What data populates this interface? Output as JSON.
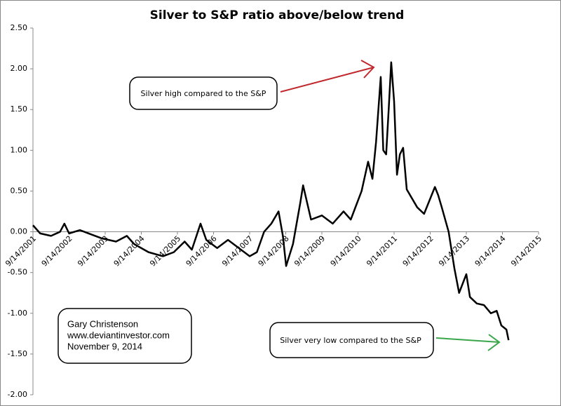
{
  "chart_data": {
    "type": "line",
    "title": "Silver to S&P ratio above/below trend",
    "x": [
      2001.7,
      2001.9,
      2002.2,
      2002.45,
      2002.57,
      2002.7,
      2003.0,
      2003.3,
      2003.6,
      2004.0,
      2004.3,
      2004.5,
      2004.9,
      2005.3,
      2005.6,
      2005.9,
      2006.1,
      2006.34,
      2006.5,
      2006.8,
      2007.1,
      2007.4,
      2007.7,
      2007.9,
      2008.1,
      2008.3,
      2008.5,
      2008.62,
      2008.71,
      2008.9,
      2009.1,
      2009.18,
      2009.4,
      2009.7,
      2010.0,
      2010.3,
      2010.5,
      2010.8,
      2010.98,
      2011.1,
      2011.2,
      2011.33,
      2011.4,
      2011.48,
      2011.55,
      2011.62,
      2011.7,
      2011.78,
      2011.86,
      2011.95,
      2012.05,
      2012.34,
      2012.53,
      2012.83,
      2012.92,
      2013.02,
      2013.21,
      2013.37,
      2013.5,
      2013.7,
      2013.8,
      2013.99,
      2014.19,
      2014.38,
      2014.54,
      2014.67,
      2014.81,
      2014.87
    ],
    "series": [
      {
        "color": "#000000",
        "values": [
          0.08,
          -0.02,
          -0.05,
          0.0,
          0.1,
          -0.02,
          0.02,
          -0.03,
          -0.08,
          -0.12,
          -0.05,
          -0.15,
          -0.25,
          -0.3,
          -0.25,
          -0.12,
          -0.22,
          0.1,
          -0.1,
          -0.2,
          -0.1,
          -0.2,
          -0.3,
          -0.25,
          0.0,
          0.1,
          0.25,
          -0.05,
          -0.42,
          -0.15,
          0.35,
          0.57,
          0.15,
          0.2,
          0.1,
          0.25,
          0.15,
          0.5,
          0.86,
          0.65,
          1.1,
          1.9,
          1.0,
          0.95,
          1.5,
          2.08,
          1.6,
          0.7,
          0.95,
          1.03,
          0.52,
          0.3,
          0.22,
          0.55,
          0.45,
          0.3,
          0.0,
          -0.45,
          -0.75,
          -0.52,
          -0.8,
          -0.88,
          -0.9,
          -1.0,
          -0.97,
          -1.15,
          -1.2,
          -1.33
        ]
      }
    ],
    "xlim": [
      2001.7,
      2015.7
    ],
    "xticks": [
      {
        "value": 2001.7,
        "label": "9/14/2001"
      },
      {
        "value": 2002.7,
        "label": "9/14/2002"
      },
      {
        "value": 2003.7,
        "label": "9/14/2003"
      },
      {
        "value": 2004.7,
        "label": "9/14/2004"
      },
      {
        "value": 2005.7,
        "label": "9/14/2005"
      },
      {
        "value": 2006.7,
        "label": "9/14/2006"
      },
      {
        "value": 2007.7,
        "label": "9/14/2007"
      },
      {
        "value": 2008.7,
        "label": "9/14/2008"
      },
      {
        "value": 2009.7,
        "label": "9/14/2009"
      },
      {
        "value": 2010.7,
        "label": "9/14/2010"
      },
      {
        "value": 2011.7,
        "label": "9/14/2011"
      },
      {
        "value": 2012.7,
        "label": "9/14/2012"
      },
      {
        "value": 2013.7,
        "label": "9/14/2013"
      },
      {
        "value": 2014.7,
        "label": "9/14/2014"
      },
      {
        "value": 2015.7,
        "label": "9/14/2015"
      }
    ],
    "ylim": [
      -2,
      2.5
    ],
    "yticks": [
      {
        "value": 2.5,
        "label": "2.50"
      },
      {
        "value": 2,
        "label": "2.00"
      },
      {
        "value": 1.5,
        "label": "1.50"
      },
      {
        "value": 1,
        "label": "1.00"
      },
      {
        "value": 0.5,
        "label": "0.50"
      },
      {
        "value": 0,
        "label": "0.00"
      },
      {
        "value": -0.5,
        "label": "-0.50"
      },
      {
        "value": -1,
        "label": "-1.00"
      },
      {
        "value": -1.5,
        "label": "-1.50"
      },
      {
        "value": -2,
        "label": "-2.00"
      }
    ],
    "annotations": [
      "Silver high compared to the S&P",
      "Silver very low compared to the S&P"
    ],
    "note": [
      "Gary Christenson",
      "www.deviantinvestor.com",
      "November 9, 2014"
    ]
  }
}
